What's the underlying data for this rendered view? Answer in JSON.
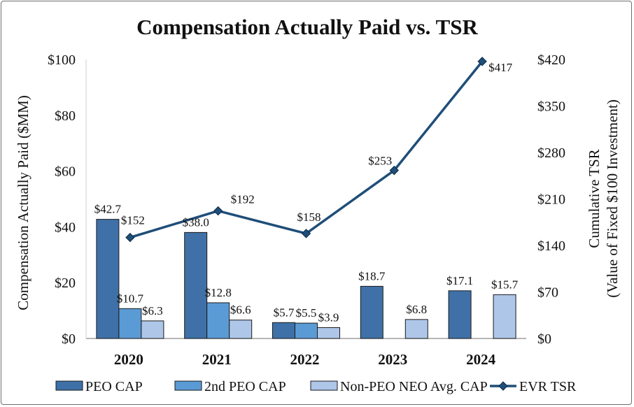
{
  "chart_data": {
    "type": "bar",
    "title": "Compensation Actually Paid vs. TSR",
    "categories": [
      "2020",
      "2021",
      "2022",
      "2023",
      "2024"
    ],
    "ylabel": "Compensation Actually Paid ($MM)",
    "ylim": [
      0,
      100
    ],
    "yticks": [
      0,
      20,
      40,
      60,
      80,
      100
    ],
    "ytick_labels": [
      "$0",
      "$20",
      "$40",
      "$60",
      "$80",
      "$100"
    ],
    "y2label_line1": "Cumulative TSR",
    "y2label_line2": "(Value of Fixed $100 Investment)",
    "y2lim": [
      0,
      420
    ],
    "y2ticks": [
      0,
      70,
      140,
      210,
      280,
      350,
      420
    ],
    "y2tick_labels": [
      "$0",
      "$70",
      "$140",
      "$210",
      "$280",
      "$350",
      "$420"
    ],
    "grid": false,
    "legend_position": "bottom",
    "series": [
      {
        "name": "PEO CAP",
        "kind": "bar",
        "color": "#3f71a8",
        "values": [
          42.7,
          38.0,
          5.7,
          18.7,
          17.1
        ],
        "labels": [
          "$42.7",
          "$38.0",
          "$5.7",
          "$18.7",
          "$17.1"
        ]
      },
      {
        "name": "2nd PEO CAP",
        "kind": "bar",
        "color": "#5b9bd5",
        "values": [
          10.7,
          12.8,
          5.5,
          null,
          null
        ],
        "labels": [
          "$10.7",
          "$12.8",
          "$5.5",
          null,
          null
        ]
      },
      {
        "name": "Non-PEO NEO Avg. CAP",
        "kind": "bar",
        "color": "#aec6e8",
        "values": [
          6.3,
          6.6,
          3.9,
          6.8,
          15.7
        ],
        "labels": [
          "$6.3",
          "$6.6",
          "$3.9",
          "$6.8",
          "$15.7"
        ]
      },
      {
        "name": "EVR TSR",
        "kind": "line",
        "axis": "secondary",
        "color": "#1f4e79",
        "values": [
          152,
          192,
          158,
          253,
          417
        ],
        "labels": [
          "$152",
          "$192",
          "$158",
          "$253",
          "$417"
        ]
      }
    ]
  }
}
